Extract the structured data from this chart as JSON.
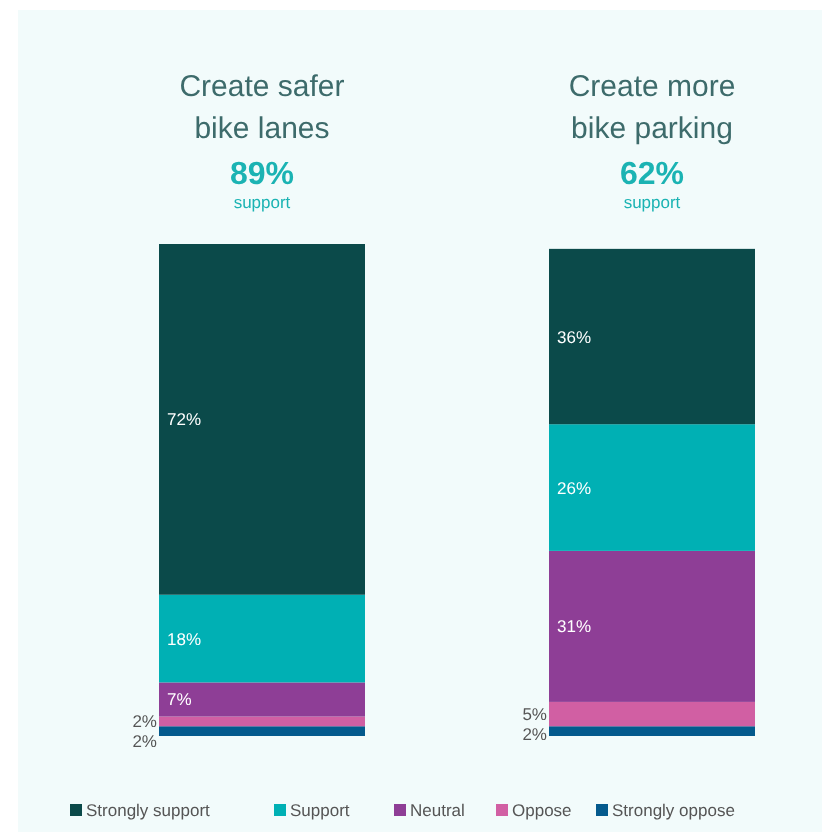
{
  "chart_data": {
    "type": "bar",
    "stacked": true,
    "legend": "bottom",
    "categories": [
      "Create safer bike lanes",
      "Create more bike parking"
    ],
    "annotations": [
      "89%",
      "support",
      "62%",
      "support"
    ],
    "series": [
      {
        "name": "Strongly oppose",
        "color": "#045a8d",
        "values": [
          2,
          2
        ],
        "value_labels": [
          "2%",
          "2%"
        ]
      },
      {
        "name": "Oppose",
        "color": "#d15fa3",
        "values": [
          2,
          5
        ],
        "value_labels": [
          "2%",
          "5%"
        ]
      },
      {
        "name": "Neutral",
        "color": "#8e3e96",
        "values": [
          7,
          31
        ],
        "value_labels": [
          "7%",
          "31%"
        ]
      },
      {
        "name": "Support",
        "color": "#00b0b4",
        "values": [
          18,
          26
        ],
        "value_labels": [
          "18%",
          "26%"
        ]
      },
      {
        "name": "Strongly support",
        "color": "#0b4a4a",
        "values": [
          72,
          36
        ],
        "value_labels": [
          "72%",
          "36%"
        ]
      }
    ]
  }
}
